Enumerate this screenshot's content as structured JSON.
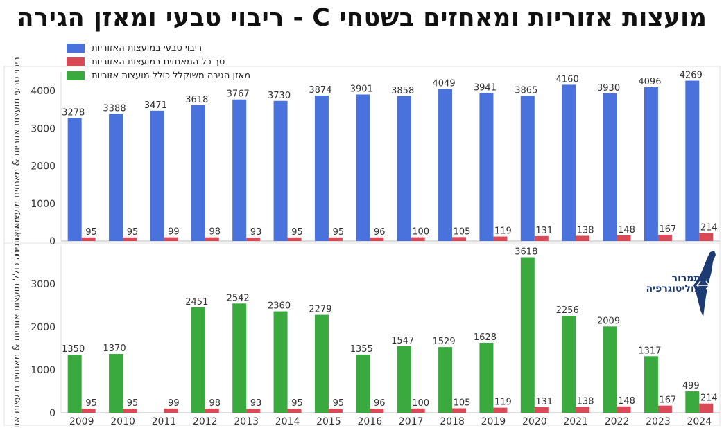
{
  "title": "מועצות אזוריות ומאחזים בשטחי C - ריבוי טבעי ומאזן הגירה",
  "legend": [
    {
      "label": "ריבוי טבעי במועצות האזוריות",
      "color": "#4a72dc"
    },
    {
      "label": "סך כל המאחזים במועצות האזוריות",
      "color": "#d94a56"
    },
    {
      "label": "מאזן הגירה משוקלל כולל מועצות אזוריות",
      "color": "#3aaa3f"
    }
  ],
  "logo": {
    "line1": "תמרור",
    "line2": "פוליטוגרפיה"
  },
  "chart_data": [
    {
      "type": "bar",
      "ylabel": "ריבוי טבעי מועצות אזוריות & מאחזים מועצות אזורית",
      "ylim": [
        0,
        4500
      ],
      "yticks": [
        0,
        1000,
        2000,
        3000,
        4000
      ],
      "categories": [
        "2009",
        "2010",
        "2011",
        "2012",
        "2013",
        "2014",
        "2015",
        "2016",
        "2017",
        "2018",
        "2019",
        "2020",
        "2021",
        "2022",
        "2023",
        "2024"
      ],
      "series": [
        {
          "name": "ריבוי טבעי במועצות האזוריות",
          "color": "#4a72dc",
          "values": [
            3278,
            3388,
            3471,
            3618,
            3767,
            3730,
            3874,
            3901,
            3858,
            4049,
            3941,
            3865,
            4160,
            3930,
            4096,
            4269
          ]
        },
        {
          "name": "סך כל המאחזים במועצות האזוריות",
          "color": "#d94a56",
          "values": [
            95,
            95,
            99,
            98,
            93,
            95,
            95,
            96,
            100,
            105,
            119,
            131,
            138,
            148,
            167,
            214
          ]
        }
      ]
    },
    {
      "type": "bar",
      "ylabel": "מאזן הגירה כולל מועצות אזוריות & מאחזים מועצות אזורית",
      "ylim": [
        0,
        3900
      ],
      "yticks": [
        0,
        1000,
        2000,
        3000
      ],
      "categories": [
        "2009",
        "2010",
        "2011",
        "2012",
        "2013",
        "2014",
        "2015",
        "2016",
        "2017",
        "2018",
        "2019",
        "2020",
        "2021",
        "2022",
        "2023",
        "2024"
      ],
      "series": [
        {
          "name": "מאזן הגירה משוקלל כולל מועצות אזוריות",
          "color": "#3aaa3f",
          "values": [
            1350,
            1370,
            null,
            2451,
            2542,
            2360,
            2279,
            1355,
            1547,
            1529,
            1628,
            3618,
            2256,
            2009,
            1317,
            499
          ]
        },
        {
          "name": "סך כל המאחזים במועצות האזוריות",
          "color": "#d94a56",
          "values": [
            95,
            95,
            99,
            98,
            93,
            95,
            95,
            96,
            100,
            105,
            119,
            131,
            138,
            148,
            167,
            214
          ]
        }
      ]
    }
  ]
}
